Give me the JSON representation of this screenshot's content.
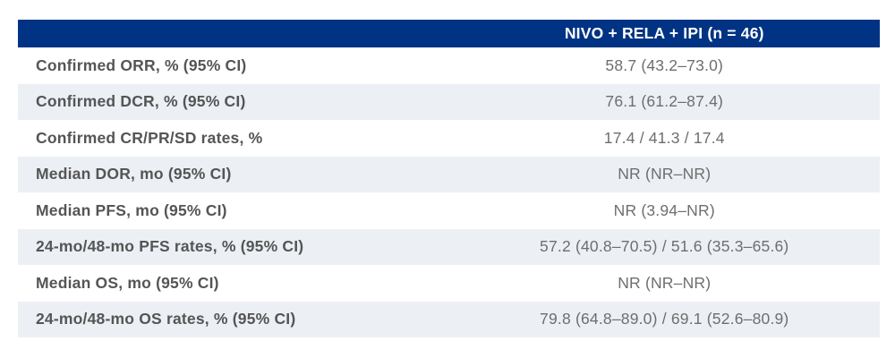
{
  "chart_data": {
    "type": "table",
    "title": "",
    "columns": [
      {
        "label": ""
      },
      {
        "label": "NIVO + RELA + IPI (n = 46)"
      }
    ],
    "rows": [
      {
        "label": "Confirmed ORR, % (95% CI)",
        "value": "58.7 (43.2–73.0)"
      },
      {
        "label": "Confirmed DCR, % (95% CI)",
        "value": "76.1 (61.2–87.4)"
      },
      {
        "label": "Confirmed CR/PR/SD rates, %",
        "value": "17.4 / 41.3 / 17.4"
      },
      {
        "label": "Median DOR, mo (95% CI)",
        "value": "NR (NR–NR)"
      },
      {
        "label": "Median PFS, mo (95% CI)",
        "value": "NR (3.94–NR)"
      },
      {
        "label": "24-mo/48-mo PFS rates, % (95% CI)",
        "value": "57.2 (40.8–70.5) / 51.6 (35.3–65.6)"
      },
      {
        "label": "Median OS, mo (95% CI)",
        "value": "NR (NR–NR)"
      },
      {
        "label": "24-mo/48-mo OS rates, % (95% CI)",
        "value": "79.8 (64.8–89.0) / 69.1 (52.6–80.9)"
      }
    ],
    "layout": {
      "zebra_striping": true,
      "striped_row_indexes": [
        1,
        3,
        5,
        7
      ],
      "value_alignment": "center"
    }
  },
  "colors": {
    "header_bg": "#003383",
    "header_text": "#FFFFFF",
    "stripe_bg": "#ECEFF4",
    "label_text": "#555555",
    "value_text": "#6E6E6E",
    "page_bg": "#FFFFFF"
  }
}
